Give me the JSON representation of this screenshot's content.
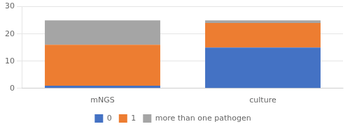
{
  "chart_data": {
    "type": "bar",
    "stacked": true,
    "categories": [
      "mNGS",
      "culture"
    ],
    "series": [
      {
        "name": "0",
        "color": "#4472C4",
        "values": [
          1,
          15
        ]
      },
      {
        "name": "1",
        "color": "#ED7D31",
        "values": [
          15,
          9
        ]
      },
      {
        "name": "more than one pathogen",
        "color": "#A5A5A5",
        "values": [
          9,
          1
        ]
      }
    ],
    "ylim": [
      0,
      30
    ],
    "yticks": [
      0,
      10,
      20,
      30
    ],
    "grid": true,
    "legend": "bottom"
  }
}
